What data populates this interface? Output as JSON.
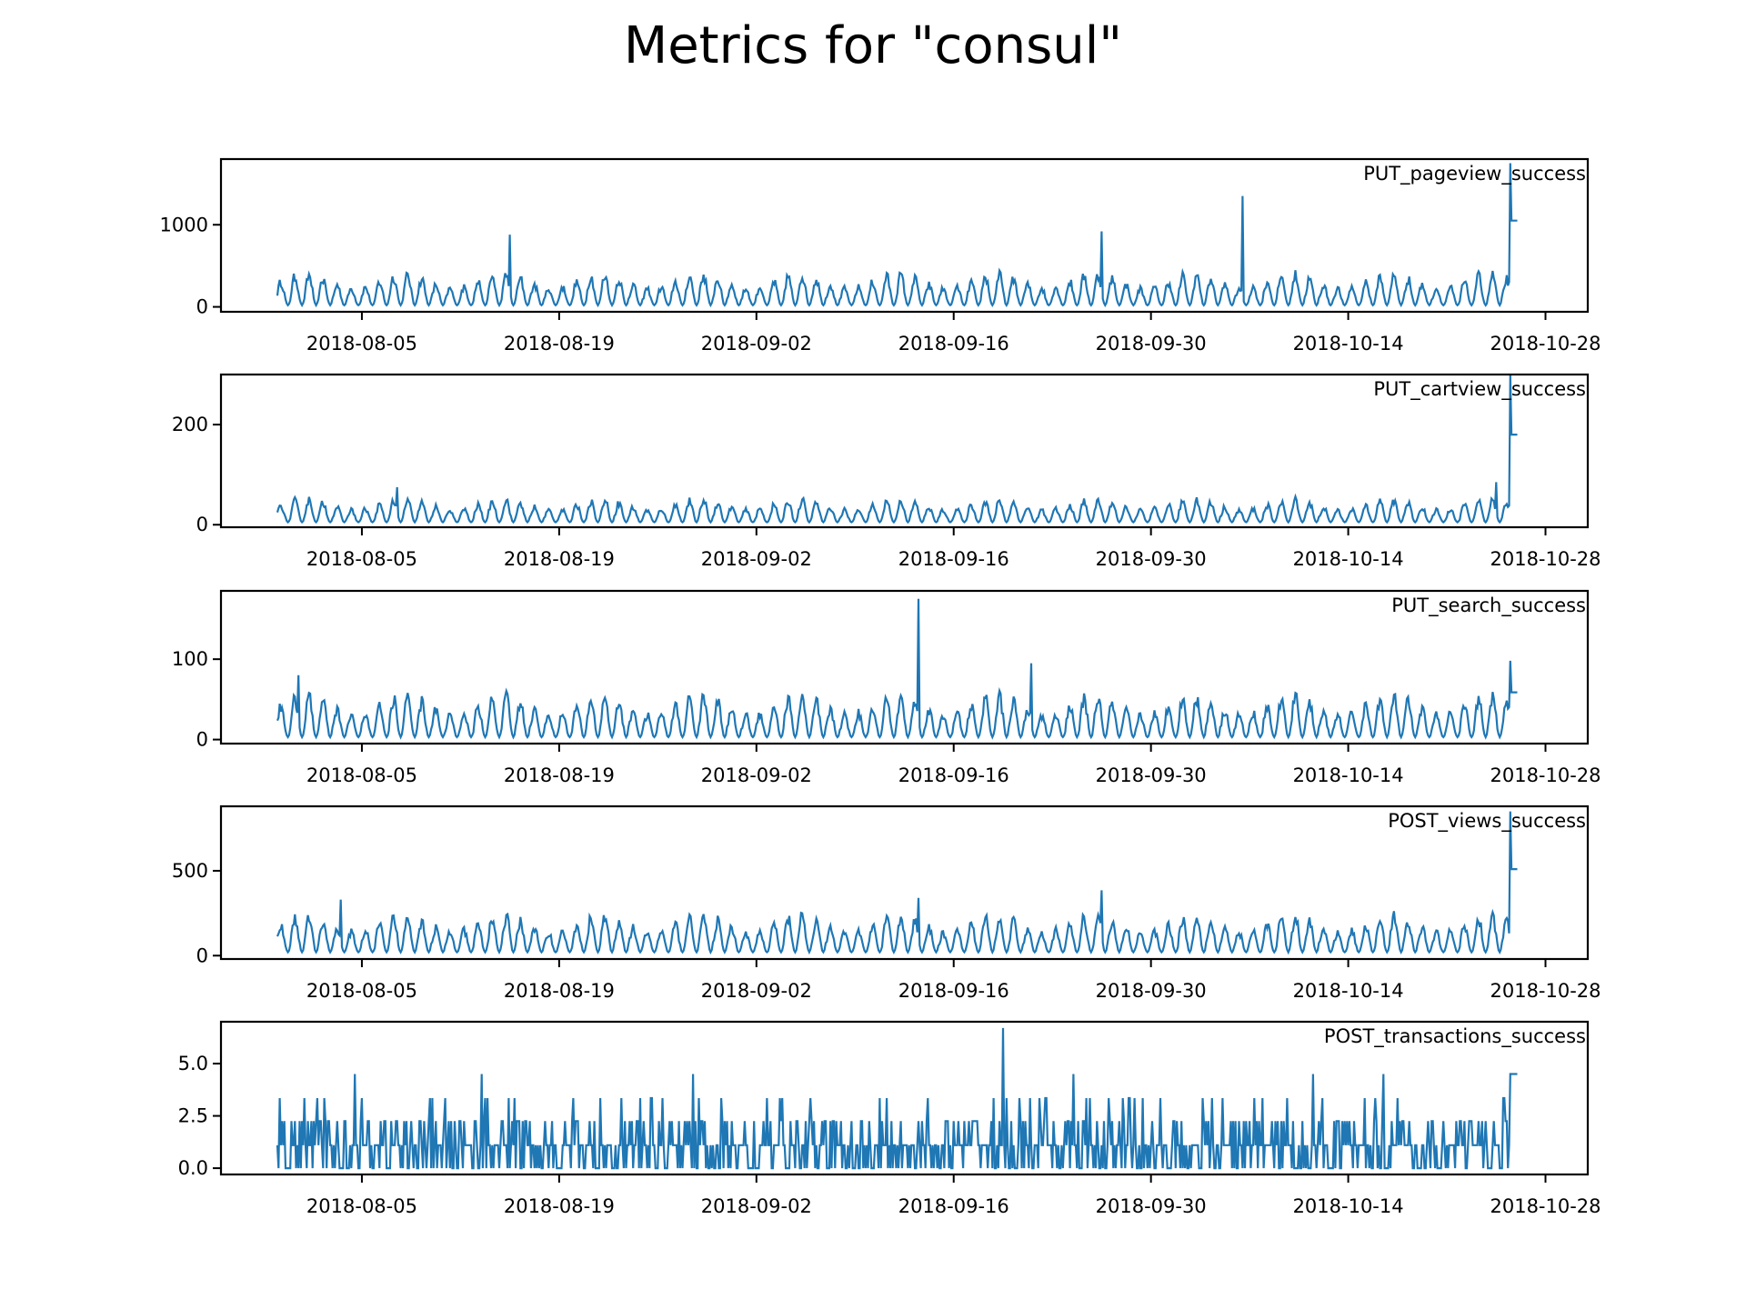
{
  "chart_data": {
    "type": "line",
    "title": "Metrics for \"consul\"",
    "color": "#1f77b4",
    "x_range": [
      "2018-07-26",
      "2018-10-31"
    ],
    "x_ticks": [
      "2018-08-05",
      "2018-08-19",
      "2018-09-02",
      "2018-09-16",
      "2018-09-30",
      "2018-10-14",
      "2018-10-28"
    ],
    "x_data_range": [
      "2018-07-30",
      "2018-10-25"
    ],
    "panels": [
      {
        "label": "PUT_pageview_success",
        "ylim": [
          -60,
          1800
        ],
        "yticks": [
          0,
          1000
        ],
        "ytick_labels": [
          "0",
          "1000"
        ],
        "base_low": 20,
        "base_amp": 330,
        "spikes": [
          {
            "date": "2018-08-15",
            "value": 880
          },
          {
            "date": "2018-09-26",
            "value": 920
          },
          {
            "date": "2018-10-06",
            "value": 1350
          },
          {
            "date": "2018-10-25",
            "value": 1750
          }
        ]
      },
      {
        "label": "PUT_cartview_success",
        "ylim": [
          -5,
          300
        ],
        "yticks": [
          0,
          200
        ],
        "ytick_labels": [
          "0",
          "200"
        ],
        "base_low": 5,
        "base_amp": 40,
        "spikes": [
          {
            "date": "2018-08-07",
            "value": 75
          },
          {
            "date": "2018-10-24",
            "value": 85
          },
          {
            "date": "2018-10-25",
            "value": 300
          }
        ]
      },
      {
        "label": "PUT_search_success",
        "ylim": [
          -5,
          185
        ],
        "yticks": [
          0,
          100
        ],
        "ytick_labels": [
          "0",
          "100"
        ],
        "base_low": 3,
        "base_amp": 45,
        "spikes": [
          {
            "date": "2018-07-31",
            "value": 80
          },
          {
            "date": "2018-09-13",
            "value": 175
          },
          {
            "date": "2018-09-21",
            "value": 95
          },
          {
            "date": "2018-10-25",
            "value": 98
          }
        ]
      },
      {
        "label": "POST_views_success",
        "ylim": [
          -20,
          880
        ],
        "yticks": [
          0,
          500
        ],
        "ytick_labels": [
          "0",
          "500"
        ],
        "base_low": 20,
        "base_amp": 190,
        "spikes": [
          {
            "date": "2018-08-03",
            "value": 330
          },
          {
            "date": "2018-09-13",
            "value": 340
          },
          {
            "date": "2018-09-26",
            "value": 385
          },
          {
            "date": "2018-10-25",
            "value": 850
          }
        ]
      },
      {
        "label": "POST_transactions_success",
        "ylim": [
          -0.3,
          7.0
        ],
        "yticks": [
          0,
          2.5,
          5.0
        ],
        "ytick_labels": [
          "0.0",
          "2.5",
          "5.0"
        ],
        "base_low": 0,
        "base_amp": 2.25,
        "spikes": [
          {
            "date": "2018-08-04",
            "value": 4.5
          },
          {
            "date": "2018-08-13",
            "value": 4.5
          },
          {
            "date": "2018-08-28",
            "value": 4.5
          },
          {
            "date": "2018-09-19",
            "value": 6.7
          },
          {
            "date": "2018-09-24",
            "value": 4.5
          },
          {
            "date": "2018-10-11",
            "value": 4.5
          },
          {
            "date": "2018-10-16",
            "value": 4.5
          },
          {
            "date": "2018-10-25",
            "value": 4.5
          }
        ]
      }
    ]
  }
}
